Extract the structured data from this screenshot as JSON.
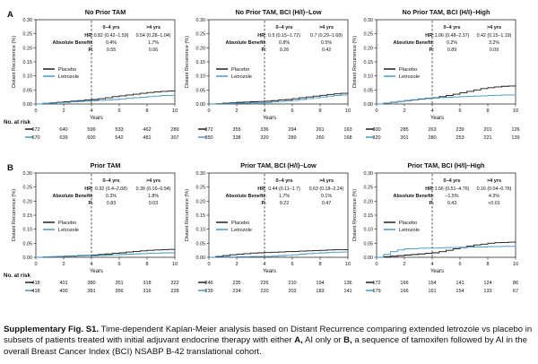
{
  "rows": [
    {
      "label": "A",
      "risk_label": "No. at risk"
    },
    {
      "label": "B",
      "risk_label": "No. at risk"
    }
  ],
  "common": {
    "x_axis_label": "Years",
    "y_axis_label": "Distant Recurrence (%)",
    "hr_label": "HR:",
    "benefit_label": "Absolute Benefit:",
    "p_label": "P:",
    "period_early": "0–4 yrs",
    "period_late": ">4 yrs",
    "placebo_label": "Placebo",
    "letrozole_label": "Letrozole",
    "placebo_color": "#111111",
    "letrozole_color": "#3f8fc4"
  },
  "chart_data": [
    {
      "type": "line",
      "row": 0,
      "col": 0,
      "title": "No Prior TAM",
      "xlim": [
        0,
        10
      ],
      "ylim": [
        0,
        0.3
      ],
      "x_ticks": [
        0,
        2,
        4,
        6,
        8,
        10
      ],
      "y_ticks": [
        "0.00",
        "0.05",
        "0.10",
        "0.15",
        "0.20",
        "0.25",
        "0.30"
      ],
      "hr": [
        "0.82 (0.42–1.59)",
        "0.54 (0.28–1.04)"
      ],
      "benefit": [
        "0.4%",
        "1.7%"
      ],
      "p": [
        "0.55",
        "0.06"
      ],
      "series": [
        {
          "name": "Placebo",
          "x": [
            0,
            0.5,
            1,
            1.5,
            2,
            2.5,
            3,
            3.5,
            4,
            4.5,
            5,
            5.5,
            6,
            6.5,
            7,
            7.5,
            8,
            8.5,
            9,
            9.5,
            10
          ],
          "y": [
            0,
            0.002,
            0.004,
            0.006,
            0.008,
            0.01,
            0.012,
            0.014,
            0.016,
            0.019,
            0.022,
            0.026,
            0.029,
            0.032,
            0.035,
            0.038,
            0.041,
            0.043,
            0.045,
            0.046,
            0.047
          ]
        },
        {
          "name": "Letrozole",
          "x": [
            0,
            0.5,
            1,
            1.5,
            2,
            2.5,
            3,
            3.5,
            4,
            4.5,
            5,
            5.5,
            6,
            6.5,
            7,
            7.5,
            8,
            8.5,
            9,
            9.5,
            10
          ],
          "y": [
            0,
            0.002,
            0.003,
            0.005,
            0.006,
            0.008,
            0.009,
            0.01,
            0.012,
            0.013,
            0.014,
            0.016,
            0.018,
            0.02,
            0.022,
            0.024,
            0.026,
            0.028,
            0.03,
            0.031,
            0.032
          ]
        }
      ],
      "risk": {
        "placebo": [
          "672",
          "640",
          "599",
          "533",
          "462",
          "289"
        ],
        "letrozole": [
          "670",
          "639",
          "600",
          "542",
          "481",
          "307"
        ]
      }
    },
    {
      "type": "line",
      "row": 0,
      "col": 1,
      "title": "No Prior TAM, BCI (H/I)–Low",
      "xlim": [
        0,
        10
      ],
      "ylim": [
        0,
        0.3
      ],
      "x_ticks": [
        0,
        2,
        4,
        6,
        8,
        10
      ],
      "y_ticks": [
        "0.00",
        "0.05",
        "0.10",
        "0.15",
        "0.20",
        "0.25",
        "0.30"
      ],
      "hr": [
        "0.5 (0.15–1.72)",
        "0.7 (0.29–1.68)"
      ],
      "benefit": [
        "0.8%",
        "0.5%"
      ],
      "p": [
        "0.26",
        "0.42"
      ],
      "series": [
        {
          "name": "Placebo",
          "x": [
            0,
            0.5,
            1,
            1.5,
            2,
            2.5,
            3,
            3.5,
            4,
            4.5,
            5,
            5.5,
            6,
            6.5,
            7,
            7.5,
            8,
            8.5,
            9,
            9.5,
            10
          ],
          "y": [
            0,
            0.001,
            0.003,
            0.004,
            0.006,
            0.007,
            0.008,
            0.009,
            0.01,
            0.012,
            0.014,
            0.016,
            0.019,
            0.022,
            0.025,
            0.028,
            0.031,
            0.034,
            0.036,
            0.038,
            0.04
          ]
        },
        {
          "name": "Letrozole",
          "x": [
            0,
            0.5,
            1,
            1.5,
            2,
            2.5,
            3,
            3.5,
            4,
            4.5,
            5,
            5.5,
            6,
            6.5,
            7,
            7.5,
            8,
            8.5,
            9,
            9.5,
            10
          ],
          "y": [
            0,
            0.001,
            0.001,
            0.002,
            0.003,
            0.003,
            0.004,
            0.004,
            0.005,
            0.007,
            0.009,
            0.011,
            0.013,
            0.016,
            0.019,
            0.022,
            0.025,
            0.028,
            0.03,
            0.032,
            0.034
          ]
        }
      ],
      "risk": {
        "placebo": [
          "372",
          "355",
          "336",
          "294",
          "261",
          "163"
        ],
        "letrozole": [
          "350",
          "338",
          "320",
          "289",
          "260",
          "168"
        ]
      }
    },
    {
      "type": "line",
      "row": 0,
      "col": 2,
      "title": "No Prior TAM, BCI (H/I)–High",
      "xlim": [
        0,
        10
      ],
      "ylim": [
        0,
        0.3
      ],
      "x_ticks": [
        0,
        2,
        4,
        6,
        8,
        10
      ],
      "y_ticks": [
        "0.00",
        "0.05",
        "0.10",
        "0.15",
        "0.20",
        "0.25",
        "0.30"
      ],
      "hr": [
        "1.06 (0.48–2.37)",
        "0.42 (0.15–1.19)"
      ],
      "benefit": [
        "0.2%",
        "3.2%"
      ],
      "p": [
        "0.89",
        "0.09"
      ],
      "series": [
        {
          "name": "Placebo",
          "x": [
            0,
            0.5,
            1,
            1.5,
            2,
            2.5,
            3,
            3.5,
            4,
            4.5,
            5,
            5.5,
            6,
            6.5,
            7,
            7.5,
            8,
            8.5,
            9,
            9.5,
            10
          ],
          "y": [
            0,
            0.003,
            0.006,
            0.009,
            0.012,
            0.015,
            0.018,
            0.02,
            0.022,
            0.026,
            0.03,
            0.035,
            0.04,
            0.045,
            0.05,
            0.055,
            0.058,
            0.061,
            0.063,
            0.064,
            0.065
          ]
        },
        {
          "name": "Letrozole",
          "x": [
            0,
            0.5,
            1,
            1.5,
            2,
            2.5,
            3,
            3.5,
            4,
            4.5,
            5,
            5.5,
            6,
            6.5,
            7,
            7.5,
            8,
            8.5,
            9,
            9.5,
            10
          ],
          "y": [
            0,
            0.003,
            0.006,
            0.009,
            0.012,
            0.014,
            0.017,
            0.019,
            0.021,
            0.023,
            0.024,
            0.025,
            0.026,
            0.027,
            0.028,
            0.029,
            0.03,
            0.031,
            0.032,
            0.032,
            0.033
          ]
        }
      ],
      "risk": {
        "placebo": [
          "300",
          "285",
          "263",
          "239",
          "201",
          "126"
        ],
        "letrozole": [
          "320",
          "301",
          "280",
          "253",
          "221",
          "139"
        ]
      }
    },
    {
      "type": "line",
      "row": 1,
      "col": 0,
      "title": "Prior TAM",
      "xlim": [
        0,
        10
      ],
      "ylim": [
        0,
        0.3
      ],
      "x_ticks": [
        0,
        2,
        4,
        6,
        8,
        10
      ],
      "y_ticks": [
        "0.00",
        "0.05",
        "0.10",
        "0.15",
        "0.20",
        "0.25",
        "0.30"
      ],
      "hr": [
        "0.92 (0.4–2.08)",
        "0.39 (0.16–0.94)"
      ],
      "benefit": [
        "0.3%",
        "1.8%"
      ],
      "p": [
        "0.83",
        "0.03"
      ],
      "series": [
        {
          "name": "Placebo",
          "x": [
            0,
            0.5,
            1,
            1.5,
            2,
            2.5,
            3,
            3.5,
            4,
            4.5,
            5,
            5.5,
            6,
            6.5,
            7,
            7.5,
            8,
            8.5,
            9,
            9.5,
            10
          ],
          "y": [
            0,
            0.001,
            0.002,
            0.003,
            0.004,
            0.005,
            0.006,
            0.007,
            0.008,
            0.01,
            0.012,
            0.014,
            0.016,
            0.019,
            0.021,
            0.023,
            0.025,
            0.026,
            0.027,
            0.028,
            0.028
          ]
        },
        {
          "name": "Letrozole",
          "x": [
            0,
            0.5,
            1,
            1.5,
            2,
            2.5,
            3,
            3.5,
            4,
            4.5,
            5,
            5.5,
            6,
            6.5,
            7,
            7.5,
            8,
            8.5,
            9,
            9.5,
            10
          ],
          "y": [
            0,
            0.001,
            0.002,
            0.003,
            0.004,
            0.004,
            0.005,
            0.006,
            0.006,
            0.007,
            0.008,
            0.009,
            0.01,
            0.011,
            0.012,
            0.013,
            0.014,
            0.015,
            0.016,
            0.016,
            0.017
          ]
        }
      ],
      "risk": {
        "placebo": [
          "418",
          "401",
          "380",
          "351",
          "318",
          "222"
        ],
        "letrozole": [
          "418",
          "400",
          "381",
          "356",
          "316",
          "228"
        ]
      }
    },
    {
      "type": "line",
      "row": 1,
      "col": 1,
      "title": "Prior TAM, BCI (H/I)–Low",
      "xlim": [
        0,
        10
      ],
      "ylim": [
        0,
        0.3
      ],
      "x_ticks": [
        0,
        2,
        4,
        6,
        8,
        10
      ],
      "y_ticks": [
        "0.00",
        "0.05",
        "0.10",
        "0.15",
        "0.20",
        "0.25",
        "0.30"
      ],
      "hr": [
        "0.44 (0.11–1.7)",
        "0.63 (0.18–2.24)"
      ],
      "benefit": [
        "1.7%",
        "0.1%"
      ],
      "p": [
        "0.22",
        "0.47"
      ],
      "series": [
        {
          "name": "Placebo",
          "x": [
            0,
            0.5,
            1,
            1.5,
            2,
            2.5,
            3,
            3.5,
            4,
            4.5,
            5,
            5.5,
            6,
            6.5,
            7,
            7.5,
            8,
            8.5,
            9,
            9.5,
            10
          ],
          "y": [
            0,
            0.003,
            0.006,
            0.009,
            0.011,
            0.013,
            0.015,
            0.016,
            0.017,
            0.018,
            0.019,
            0.02,
            0.021,
            0.022,
            0.023,
            0.024,
            0.025,
            0.026,
            0.027,
            0.027,
            0.028
          ]
        },
        {
          "name": "Letrozole",
          "x": [
            0,
            0.5,
            1,
            1.5,
            2,
            2.5,
            3,
            3.5,
            4,
            4.5,
            5,
            5.5,
            6,
            6.5,
            7,
            7.5,
            8,
            8.5,
            9,
            9.5,
            10
          ],
          "y": [
            0,
            0.0,
            0.001,
            0.001,
            0.002,
            0.002,
            0.003,
            0.003,
            0.003,
            0.004,
            0.006,
            0.007,
            0.009,
            0.011,
            0.013,
            0.015,
            0.016,
            0.017,
            0.018,
            0.019,
            0.02
          ]
        }
      ],
      "risk": {
        "placebo": [
          "246",
          "235",
          "226",
          "210",
          "194",
          "136"
        ],
        "letrozole": [
          "239",
          "234",
          "220",
          "202",
          "183",
          "141"
        ]
      }
    },
    {
      "type": "line",
      "row": 1,
      "col": 2,
      "title": "Prior TAM, BCI (H/I)–High",
      "xlim": [
        0,
        10
      ],
      "ylim": [
        0,
        0.3
      ],
      "x_ticks": [
        0,
        2,
        4,
        6,
        8,
        10
      ],
      "y_ticks": [
        "0.00",
        "0.05",
        "0.10",
        "0.15",
        "0.20",
        "0.25",
        "0.30"
      ],
      "hr": [
        "1.56 (0.51–4.76)",
        "0.16 (0.04–0.76)"
      ],
      "benefit": [
        "−1.5%",
        "4.3%"
      ],
      "p": [
        "0.43",
        "<0.01"
      ],
      "series": [
        {
          "name": "Placebo",
          "x": [
            0,
            0.5,
            1,
            1.5,
            2,
            2.5,
            3,
            3.5,
            4,
            4.5,
            5,
            5.5,
            6,
            6.5,
            7,
            7.5,
            8,
            8.5,
            9,
            9.5,
            10
          ],
          "y": [
            0,
            0.002,
            0.004,
            0.006,
            0.008,
            0.01,
            0.012,
            0.014,
            0.016,
            0.02,
            0.025,
            0.03,
            0.035,
            0.04,
            0.044,
            0.047,
            0.05,
            0.052,
            0.053,
            0.054,
            0.055
          ]
        },
        {
          "name": "Letrozole",
          "x": [
            0,
            0.5,
            1,
            1.5,
            2,
            2.5,
            3,
            3.5,
            4,
            4.5,
            5,
            5.5,
            6,
            6.5,
            7,
            7.5,
            8,
            8.5,
            9,
            9.5,
            10
          ],
          "y": [
            0,
            0.01,
            0.02,
            0.026,
            0.03,
            0.031,
            0.032,
            0.033,
            0.033,
            0.034,
            0.035,
            0.035,
            0.036,
            0.036,
            0.037,
            0.037,
            0.038,
            0.038,
            0.039,
            0.039,
            0.04
          ]
        }
      ],
      "risk": {
        "placebo": [
          "172",
          "166",
          "154",
          "141",
          "124",
          "86"
        ],
        "letrozole": [
          "179",
          "166",
          "161",
          "154",
          "133",
          "67"
        ]
      }
    }
  ],
  "caption": {
    "label": "Supplementary Fig. S1.",
    "text_1": " Time-dependent Kaplan-Meier analysis based on Distant Recurrence comparing extended letrozole vs placebo in subsets of patients treated with initial adjuvant endocrine therapy with either ",
    "letter_a": "A,",
    "text_2": " AI only or ",
    "letter_b": "B,",
    "text_3": " a sequence of tamoxifen followed by AI in the overall Breast Cancer Index (BCI) NSABP B-42 translational cohort."
  }
}
